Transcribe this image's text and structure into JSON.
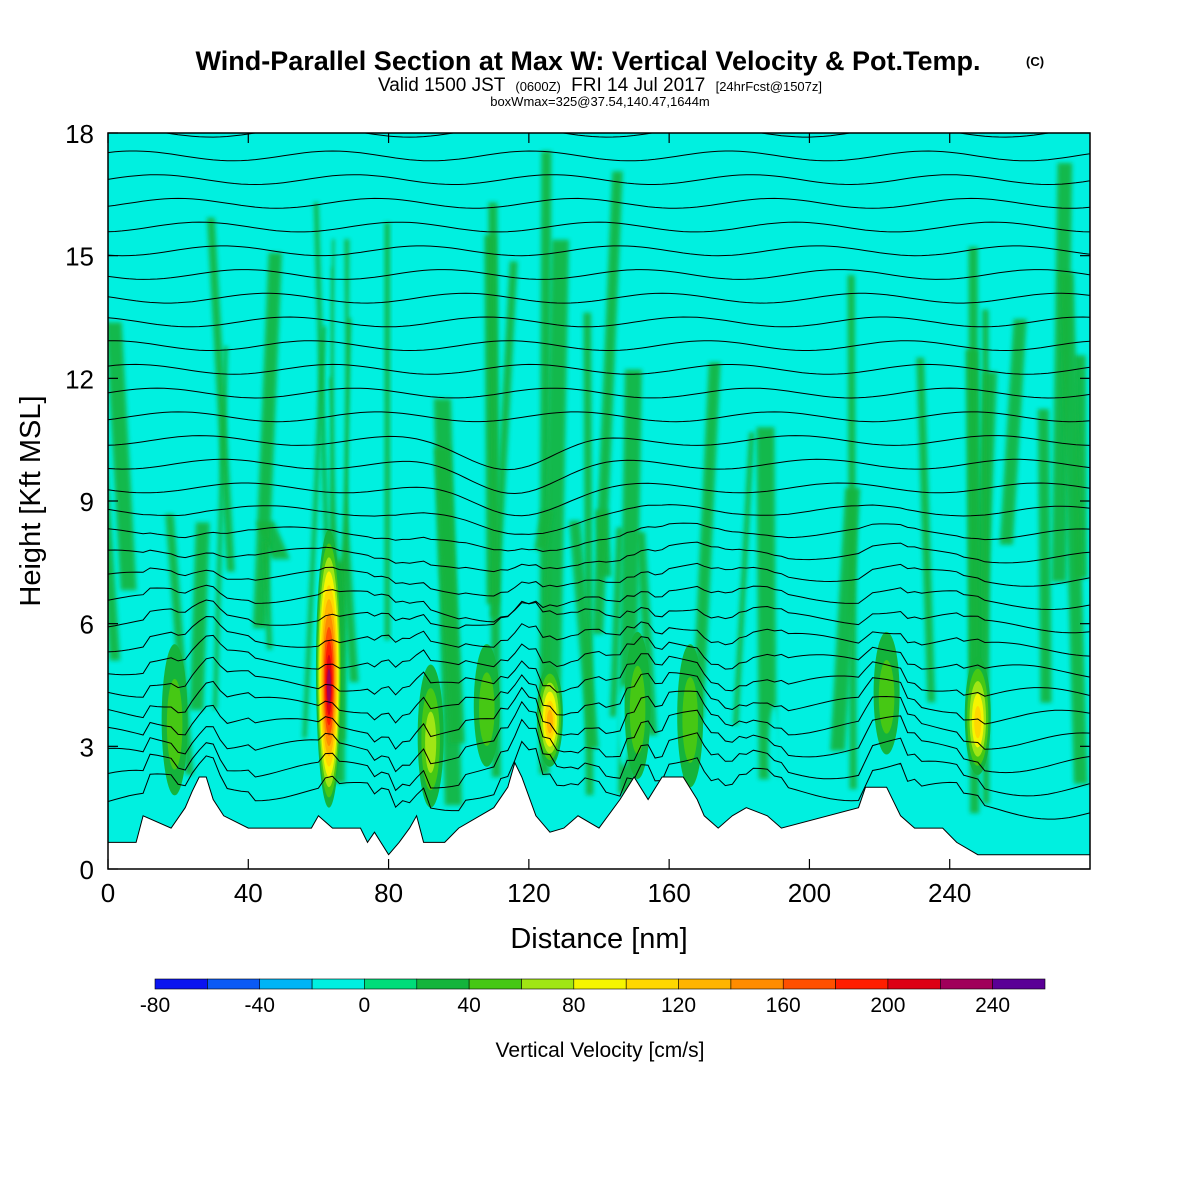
{
  "chart_data": {
    "type": "heatmap",
    "title": "Wind-Parallel Section at Max W: Vertical Velocity & Pot.Temp.",
    "title_mark": "(C)",
    "subtitle": {
      "valid": "Valid 1500 JST",
      "zulu": "(0600Z)",
      "date": "FRI 14 Jul 2017",
      "forecast": "[24hrFcst@1507z]"
    },
    "box_note": "boxWmax=325@37.54,140.47,1644m",
    "xlabel": "Distance [nm]",
    "ylabel": "Height [Kft MSL]",
    "xlim": [
      0,
      280
    ],
    "ylim": [
      0,
      18
    ],
    "x_ticks": [
      "0",
      "40",
      "80",
      "120",
      "160",
      "200",
      "240"
    ],
    "y_ticks": [
      "0",
      "3",
      "6",
      "9",
      "12",
      "15",
      "18"
    ],
    "colorbar": {
      "label": "Vertical Velocity [cm/s]",
      "tick_labels": [
        "-80",
        "-40",
        "0",
        "40",
        "80",
        "120",
        "160",
        "200",
        "240"
      ],
      "bounds": [
        -80,
        260
      ],
      "colors": [
        "#0a14f0",
        "#0a5af5",
        "#00b4f5",
        "#00f0e0",
        "#00dc7a",
        "#14b43c",
        "#46c814",
        "#a0e614",
        "#f5f500",
        "#ffd700",
        "#ffb400",
        "#ff8c00",
        "#ff5000",
        "#ff1e00",
        "#dc0014",
        "#a0005a",
        "#5a0096"
      ]
    },
    "background_level": "0 to 20",
    "updraft_cores": [
      {
        "x": 63,
        "base": 1.5,
        "top": 8.3,
        "peak": 220
      },
      {
        "x": 126,
        "base": 2.5,
        "top": 5.0,
        "peak": 120
      },
      {
        "x": 248,
        "base": 2.3,
        "top": 5.2,
        "peak": 100
      },
      {
        "x": 92,
        "base": 1.5,
        "top": 5.0,
        "peak": 70
      },
      {
        "x": 19,
        "base": 1.8,
        "top": 5.5,
        "peak": 50
      },
      {
        "x": 108,
        "base": 2.5,
        "top": 5.5,
        "peak": 45
      },
      {
        "x": 151,
        "base": 2.2,
        "top": 5.8,
        "peak": 50
      },
      {
        "x": 166,
        "base": 2.0,
        "top": 5.5,
        "peak": 40
      },
      {
        "x": 222,
        "base": 2.8,
        "top": 5.8,
        "peak": 55
      }
    ],
    "downdraft_cores": [
      {
        "x": 66,
        "base": 7.5,
        "top": 17.5,
        "peak": -20
      },
      {
        "x": 92,
        "base": 5.5,
        "top": 7.5,
        "peak": -35
      },
      {
        "x": 117,
        "base": 7.0,
        "top": 8.5,
        "peak": -25
      },
      {
        "x": 147,
        "base": 2.5,
        "top": 4.5,
        "peak": -25
      },
      {
        "x": 190,
        "base": 1.5,
        "top": 4.0,
        "peak": -20
      }
    ],
    "terrain_kft": [
      [
        0,
        0.65
      ],
      [
        8,
        0.65
      ],
      [
        10,
        1.3
      ],
      [
        18,
        1.0
      ],
      [
        22,
        1.5
      ],
      [
        24,
        1.9
      ],
      [
        26,
        2.25
      ],
      [
        28,
        2.25
      ],
      [
        30,
        1.7
      ],
      [
        33,
        1.3
      ],
      [
        40,
        1.0
      ],
      [
        58,
        1.0
      ],
      [
        60,
        1.3
      ],
      [
        64,
        1.0
      ],
      [
        72,
        1.0
      ],
      [
        74,
        0.65
      ],
      [
        76,
        0.9
      ],
      [
        80,
        0.35
      ],
      [
        83,
        0.65
      ],
      [
        86,
        1.0
      ],
      [
        88,
        1.3
      ],
      [
        90,
        0.65
      ],
      [
        96,
        0.65
      ],
      [
        100,
        1.0
      ],
      [
        110,
        1.5
      ],
      [
        114,
        2.0
      ],
      [
        116,
        2.6
      ],
      [
        118,
        2.25
      ],
      [
        122,
        1.3
      ],
      [
        126,
        0.9
      ],
      [
        130,
        1.0
      ],
      [
        134,
        1.3
      ],
      [
        140,
        1.0
      ],
      [
        146,
        1.7
      ],
      [
        150,
        2.25
      ],
      [
        154,
        1.7
      ],
      [
        158,
        2.25
      ],
      [
        164,
        2.25
      ],
      [
        168,
        1.7
      ],
      [
        170,
        1.3
      ],
      [
        174,
        1.0
      ],
      [
        178,
        1.3
      ],
      [
        182,
        1.5
      ],
      [
        188,
        1.3
      ],
      [
        192,
        1.0
      ],
      [
        214,
        1.5
      ],
      [
        216,
        2.0
      ],
      [
        222,
        2.0
      ],
      [
        226,
        1.3
      ],
      [
        230,
        1.0
      ],
      [
        238,
        1.0
      ],
      [
        242,
        0.65
      ],
      [
        248,
        0.35
      ],
      [
        280,
        0.35
      ]
    ],
    "isentropes": {
      "count": 30,
      "base_height": 1.2,
      "spacing": 0.58
    }
  }
}
